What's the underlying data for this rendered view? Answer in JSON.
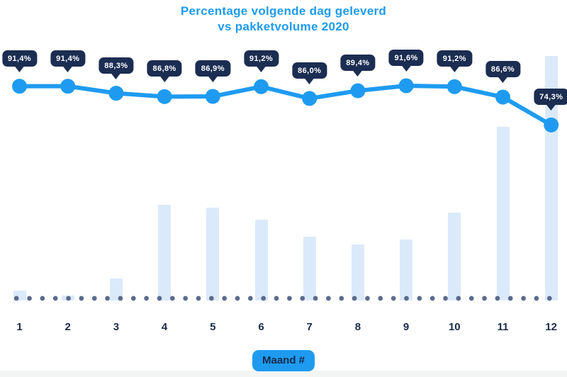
{
  "title": {
    "line1": "Percentage volgende dag geleverd",
    "line2": "vs pakketvolume 2020"
  },
  "x_axis": {
    "label_badge": "Maand #"
  },
  "colors": {
    "accent_blue": "#1e9bf0",
    "badge_navy": "#1c2d52",
    "label_navy": "#1b2a4e",
    "bar_light_blue": "#dbeafa",
    "dot_slate": "#5b6b8b",
    "badge_text": "#ffffff",
    "axis_badge_text": "#15294c",
    "background": "#ffffff"
  },
  "chart_data": {
    "type": "combo",
    "title": "Percentage volgende dag geleverd vs pakketvolume 2020",
    "xlabel": "Maand #",
    "categories": [
      "1",
      "2",
      "3",
      "4",
      "5",
      "6",
      "7",
      "8",
      "9",
      "10",
      "11",
      "12"
    ],
    "legend_position": "none",
    "grid": false,
    "series": [
      {
        "name": "Percentage volgende dag geleverd",
        "type": "line",
        "unit": "%",
        "ylim": [
          70,
          95
        ],
        "values": [
          91.4,
          91.4,
          88.3,
          86.8,
          86.9,
          91.2,
          86.0,
          89.4,
          91.6,
          91.2,
          86.6,
          74.3
        ],
        "labels": [
          "91,4%",
          "91,4%",
          "88,3%",
          "86,8%",
          "86,9%",
          "91,2%",
          "86,0%",
          "89,4%",
          "91,6%",
          "91,2%",
          "86,6%",
          "74,3%"
        ]
      },
      {
        "name": "Pakketvolume 2020",
        "type": "bar",
        "unit": "relative volume (estimated, max = 100)",
        "values": [
          4,
          2,
          9,
          39,
          38,
          33,
          26,
          23,
          25,
          36,
          71,
          100
        ]
      }
    ]
  }
}
